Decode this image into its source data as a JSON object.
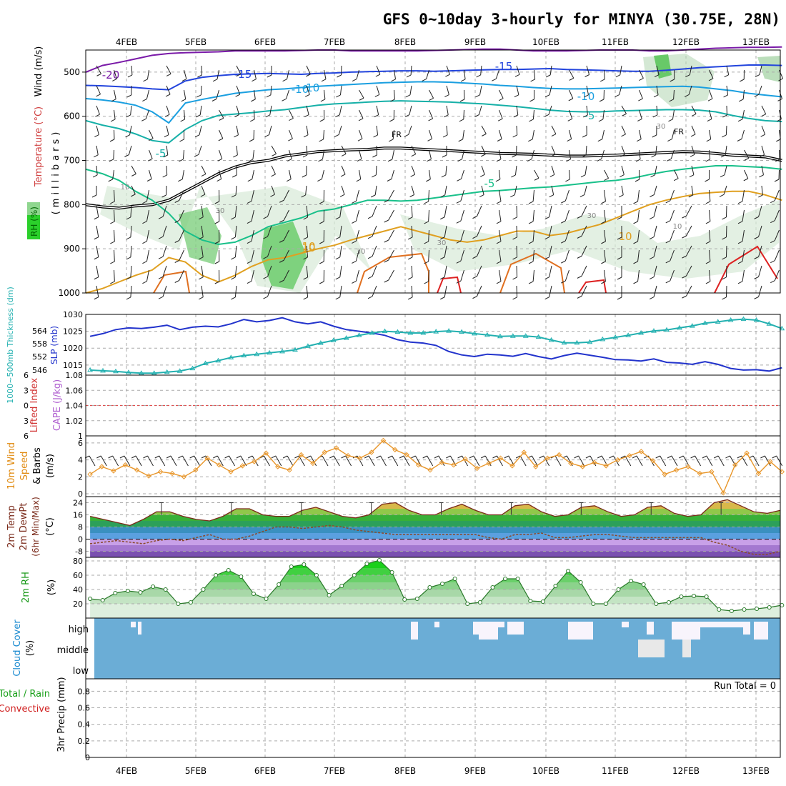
{
  "title": "GFS 0~10day 3-hourly for MINYA (30.75E, 28N)",
  "dates": [
    "4FEB",
    "5FEB",
    "6FEB",
    "7FEB",
    "8FEB",
    "9FEB",
    "10FEB",
    "11FEB",
    "12FEB",
    "13FEB"
  ],
  "colors": {
    "slp": "#2233cc",
    "thickness": "#22b0b0",
    "wind10m": "#e8962a",
    "dewpoint": "#8b4a2a",
    "rh_line": "#2a8a2a",
    "cloud": "#6badd6",
    "grid": "#aaaaaa",
    "frame": "#000000",
    "lifted_zero": "#e05050",
    "purple": "#7a1aa8",
    "blue": "#2244dd",
    "lightblue": "#1a9fe0",
    "teal": "#16b0a8",
    "green": "#18c08a",
    "orange": "#e0a020",
    "darkorange": "#e07020",
    "red": "#dd2222"
  },
  "chart_data": [
    {
      "type": "contour",
      "panel": "upper",
      "ylabel": "(millibars)",
      "side_labels": {
        "wind": "Wind (m/s)",
        "temperature": "Temperature (°C)",
        "rh": "RH (%)"
      },
      "y_ticks": [
        500,
        600,
        700,
        800,
        900,
        1000
      ],
      "ylim": [
        450,
        1000
      ],
      "temp_labels": [
        "-20",
        "-15",
        "-15",
        "-10",
        "-10",
        "-10",
        "-5",
        "-5",
        "-5",
        "FR",
        "FR",
        "10",
        "10",
        "10",
        "30",
        "30",
        "30",
        "30",
        "30",
        "10",
        "10"
      ],
      "isotherms": [
        {
          "label": "-20",
          "color_key": "purple",
          "p": [
            500,
            485,
            478,
            470,
            462,
            458,
            456,
            455,
            454,
            452,
            452,
            452,
            452,
            451,
            450,
            450,
            452,
            452,
            452,
            452,
            452,
            451,
            450,
            449,
            448,
            448,
            450,
            452,
            452,
            452,
            451,
            450,
            450,
            450,
            452,
            452,
            450,
            448,
            446,
            445,
            444,
            444,
            443
          ]
        },
        {
          "label": "-15",
          "color_key": "blue",
          "p": [
            530,
            531,
            533,
            535,
            538,
            540,
            520,
            512,
            508,
            505,
            504,
            503,
            504,
            505,
            503,
            502,
            500,
            499,
            498,
            497,
            497,
            498,
            497,
            496,
            495,
            494,
            494,
            493,
            492,
            494,
            495,
            496,
            497,
            498,
            498,
            496,
            493,
            490,
            488,
            486,
            484,
            484,
            485
          ]
        },
        {
          "label": "-10",
          "color_key": "lightblue",
          "p": [
            560,
            563,
            568,
            575,
            590,
            615,
            570,
            562,
            555,
            548,
            544,
            540,
            538,
            535,
            532,
            530,
            528,
            526,
            524,
            523,
            522,
            522,
            523,
            525,
            527,
            530,
            532,
            535,
            537,
            538,
            538,
            537,
            536,
            535,
            534,
            533,
            532,
            534,
            538,
            542,
            548,
            552,
            556
          ]
        },
        {
          "label": "-5",
          "color_key": "teal",
          "p": [
            610,
            620,
            628,
            640,
            655,
            660,
            630,
            610,
            598,
            595,
            592,
            588,
            585,
            580,
            575,
            572,
            570,
            568,
            566,
            565,
            566,
            567,
            568,
            570,
            572,
            575,
            578,
            582,
            586,
            589,
            590,
            590,
            588,
            587,
            586,
            585,
            585,
            586,
            590,
            598,
            605,
            610,
            612
          ]
        },
        {
          "label": "FR",
          "color_key": "frame",
          "p": [
            800,
            805,
            808,
            803,
            800,
            790,
            770,
            750,
            730,
            715,
            705,
            700,
            690,
            685,
            680,
            678,
            676,
            675,
            672,
            672,
            674,
            676,
            678,
            680,
            682,
            684,
            685,
            686,
            688,
            690,
            690,
            689,
            688,
            686,
            684,
            682,
            680,
            681,
            684,
            688,
            690,
            692,
            700
          ]
        },
        {
          "label": "-5",
          "color_key": "green",
          "p": [
            720,
            730,
            745,
            770,
            790,
            820,
            860,
            880,
            890,
            885,
            870,
            850,
            840,
            830,
            815,
            810,
            800,
            790,
            790,
            792,
            790,
            785,
            780,
            775,
            770,
            768,
            765,
            762,
            760,
            756,
            752,
            748,
            745,
            740,
            732,
            725,
            720,
            716,
            712,
            712,
            714,
            716,
            720
          ]
        },
        {
          "label": "10",
          "color_key": "orange",
          "p": [
            1000,
            990,
            975,
            960,
            948,
            920,
            930,
            960,
            975,
            960,
            940,
            925,
            920,
            910,
            900,
            892,
            880,
            870,
            860,
            850,
            860,
            870,
            880,
            885,
            880,
            870,
            860,
            860,
            870,
            865,
            855,
            845,
            830,
            815,
            800,
            790,
            782,
            775,
            772,
            770,
            770,
            778,
            790
          ]
        }
      ],
      "wind_barbs": "lower-troposphere westerlies",
      "rh_shading": [
        10,
        30,
        50,
        70,
        90
      ]
    },
    {
      "type": "line",
      "panel": "slp",
      "left_label": "1000~500mb Thickness (dm)",
      "right_label": "SLP (mb)",
      "left_ticks": [
        546,
        552,
        558,
        564
      ],
      "right_ticks": [
        1015,
        1020,
        1025,
        1030
      ],
      "series": [
        {
          "name": "SLP (mb)",
          "color_key": "slp",
          "values": [
            1023.5,
            1024.3,
            1025.5,
            1026.0,
            1025.8,
            1026.2,
            1026.8,
            1025.5,
            1026.2,
            1026.5,
            1026.3,
            1027.2,
            1028.5,
            1027.8,
            1028.2,
            1029.0,
            1027.8,
            1027.2,
            1027.8,
            1026.5,
            1025.5,
            1025.0,
            1024.5,
            1023.8,
            1022.5,
            1021.8,
            1021.5,
            1020.8,
            1019.0,
            1018.0,
            1017.5,
            1018.2,
            1018.0,
            1017.6,
            1018.4,
            1017.5,
            1016.8,
            1017.8,
            1018.5,
            1017.9,
            1017.3,
            1016.6,
            1016.5,
            1016.2,
            1016.8,
            1015.8,
            1015.6,
            1015.2,
            1016.0,
            1015.2,
            1014.0,
            1013.5,
            1013.6,
            1013.2,
            1014.2
          ]
        },
        {
          "name": "Thickness (dm)",
          "color_key": "thickness",
          "values": [
            1013.5,
            1013.3,
            1013.1,
            1012.8,
            1012.6,
            1012.6,
            1012.9,
            1013.2,
            1014.0,
            1015.5,
            1016.3,
            1017.2,
            1017.8,
            1018.2,
            1018.6,
            1019.0,
            1019.5,
            1020.6,
            1021.5,
            1022.3,
            1023.0,
            1023.8,
            1024.5,
            1025.0,
            1024.8,
            1024.5,
            1024.5,
            1024.9,
            1025.1,
            1024.8,
            1024.3,
            1023.9,
            1023.5,
            1023.6,
            1023.6,
            1023.3,
            1022.4,
            1021.6,
            1021.6,
            1021.8,
            1022.6,
            1023.2,
            1023.8,
            1024.5,
            1025.1,
            1025.4,
            1026.0,
            1026.6,
            1027.4,
            1027.8,
            1028.3,
            1028.6,
            1028.3,
            1027.2,
            1025.8
          ]
        }
      ],
      "ylim": [
        1012,
        1030
      ]
    },
    {
      "type": "line",
      "panel": "stability",
      "left_label": "Lifted Index",
      "right_label": "CAPE (J/kg)",
      "left_ticks": [
        "6",
        "3",
        "0",
        "3",
        "6"
      ],
      "right_ticks": [
        "1",
        "1.02",
        "1.04",
        "1.06",
        "1.08"
      ],
      "zero_line": 0
    },
    {
      "type": "line",
      "panel": "wind10m",
      "label_line1": "10m Wind",
      "label_line2": "Speed",
      "label_line3": "& Barbs",
      "unit": "(m/s)",
      "y_ticks": [
        0,
        2,
        4,
        6
      ],
      "ylim": [
        0,
        6.5
      ],
      "series": [
        {
          "name": "10m Wind Speed",
          "color_key": "wind10m",
          "values": [
            2.3,
            3.2,
            2.7,
            3.4,
            2.8,
            2.1,
            2.6,
            2.4,
            2.0,
            2.8,
            4.2,
            3.4,
            2.6,
            3.3,
            3.8,
            4.8,
            3.2,
            2.8,
            4.6,
            3.6,
            4.9,
            5.4,
            4.5,
            4.2,
            4.9,
            6.3,
            5.2,
            4.6,
            3.4,
            2.8,
            3.7,
            3.4,
            4.1,
            3.0,
            3.6,
            4.2,
            3.3,
            4.9,
            3.2,
            4.2,
            4.6,
            3.6,
            3.2,
            3.7,
            3.3,
            4.0,
            4.5,
            5.0,
            3.9,
            2.3,
            2.8,
            3.2,
            2.4,
            2.6,
            0.1,
            3.4,
            4.8,
            2.4,
            3.8,
            2.6
          ]
        }
      ],
      "barbs": "westerly 10m barbs"
    },
    {
      "type": "area",
      "panel": "temperature",
      "label_line1": "2m Temp",
      "label_line2": "2m DewPt",
      "label_line3": "(6hr Min/Max)",
      "unit": "(°C)",
      "y_ticks": [
        24,
        16,
        8,
        0,
        -8
      ],
      "ylim": [
        -12,
        28
      ],
      "series": [
        {
          "name": "2m Temp",
          "color_key": "dewpoint",
          "values": [
            15,
            13,
            11,
            9,
            13,
            18,
            18,
            15,
            13,
            12,
            15,
            20,
            20,
            16,
            15,
            15,
            19,
            21,
            18,
            15,
            14,
            16,
            23,
            24,
            19,
            16,
            16,
            20,
            23,
            19,
            16,
            16,
            22,
            23,
            18,
            15,
            16,
            21,
            22,
            18,
            15,
            16,
            21,
            22,
            17,
            15,
            16,
            24,
            26,
            22,
            18,
            17,
            19
          ]
        },
        {
          "name": "2m DewPt",
          "color_key": "dewpoint",
          "values": [
            -3,
            -2,
            -1,
            -2,
            -3,
            -1,
            0,
            -1,
            1,
            3,
            0,
            0,
            2,
            5,
            8,
            8,
            7,
            8,
            9,
            8,
            6,
            5,
            4,
            3,
            3,
            3,
            3,
            3,
            3,
            3,
            1,
            0,
            3,
            3,
            4,
            1,
            1,
            2,
            3,
            3,
            2,
            1,
            1,
            1,
            1,
            1,
            1,
            -2,
            -4,
            -8,
            -10,
            -10,
            -8
          ]
        }
      ]
    },
    {
      "type": "area",
      "panel": "rh",
      "label": "2m RH",
      "unit": "(%)",
      "y_ticks": [
        20,
        40,
        60,
        80
      ],
      "ylim": [
        0,
        85
      ],
      "series": [
        {
          "name": "2m RH",
          "color_key": "rh_line",
          "values": [
            27,
            25,
            35,
            38,
            36,
            44,
            40,
            20,
            22,
            40,
            60,
            67,
            58,
            34,
            27,
            47,
            72,
            75,
            60,
            32,
            45,
            60,
            76,
            81,
            64,
            26,
            27,
            43,
            48,
            55,
            20,
            22,
            43,
            55,
            55,
            24,
            23,
            45,
            66,
            50,
            20,
            20,
            40,
            52,
            47,
            20,
            22,
            30,
            31,
            30,
            12,
            10,
            12,
            13,
            15,
            18
          ]
        }
      ]
    },
    {
      "type": "heatmap",
      "panel": "cloud",
      "label": "Cloud Cover",
      "unit": "(%)",
      "levels": [
        "high",
        "middle",
        "low"
      ]
    },
    {
      "type": "bar",
      "panel": "precip",
      "label_line1": "Total / Rain",
      "label_line2": "Convective",
      "ylabel": "3hr Precip (mm)",
      "y_ticks": [
        "0",
        "0.2",
        "0.4",
        "0.6",
        "0.8"
      ],
      "run_total": "Run Total = 0",
      "values": [
        0
      ]
    }
  ]
}
